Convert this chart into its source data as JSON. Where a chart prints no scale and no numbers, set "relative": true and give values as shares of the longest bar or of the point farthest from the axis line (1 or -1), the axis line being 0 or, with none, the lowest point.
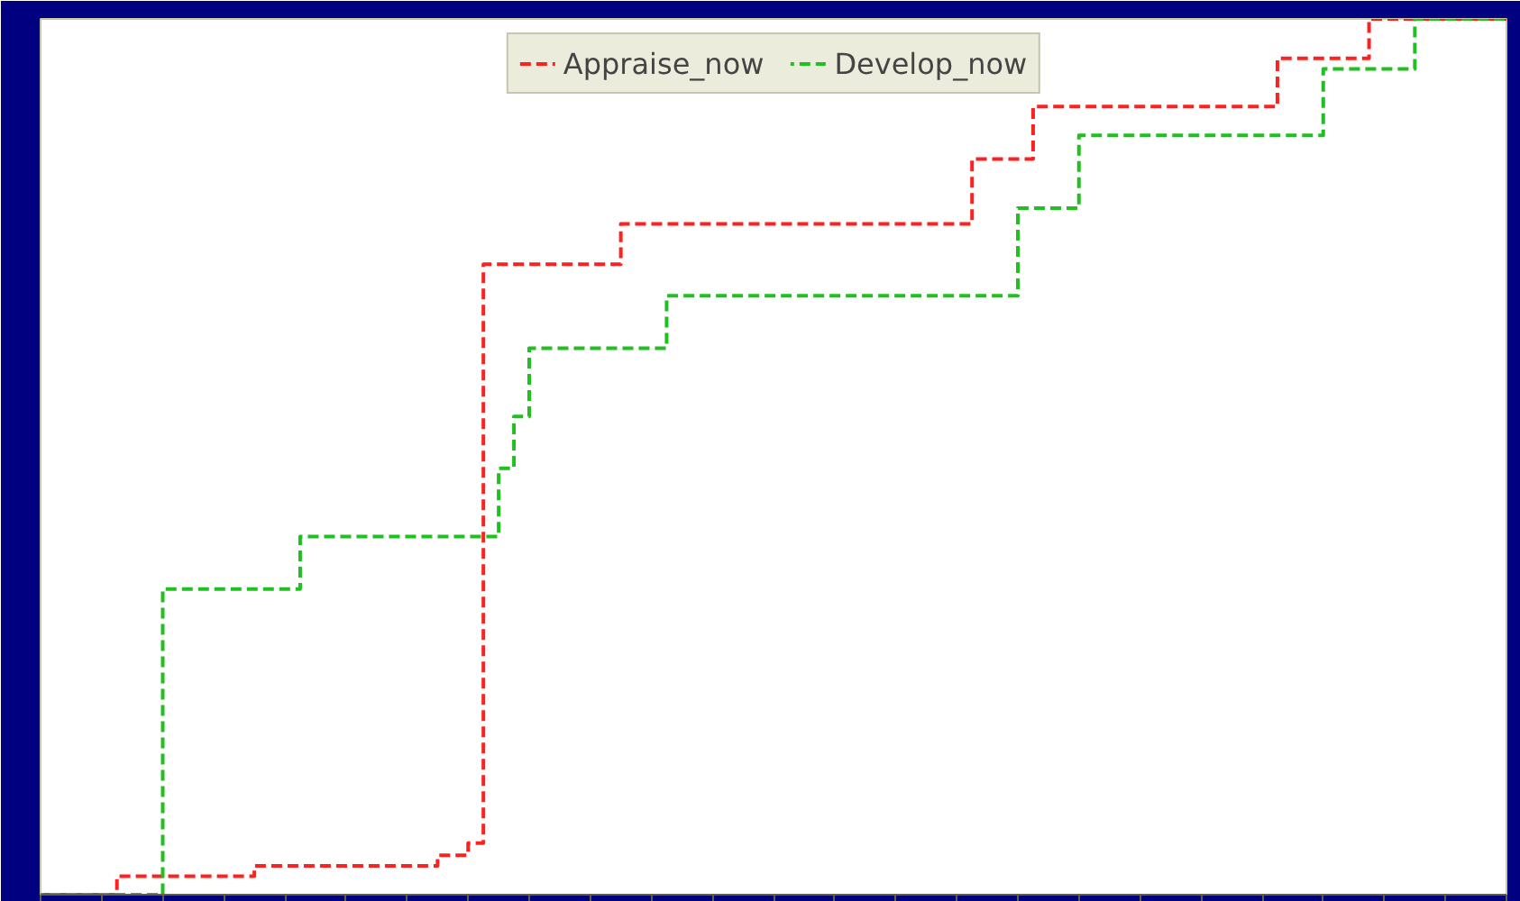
{
  "chart_data": {
    "type": "step",
    "relative": true,
    "categories": [
      null,
      null,
      null,
      null,
      null,
      null,
      null,
      null,
      null,
      null,
      null,
      null,
      null,
      null,
      null,
      null,
      null,
      null,
      null,
      null,
      null,
      null,
      null,
      null,
      null,
      null,
      null,
      null,
      null,
      null,
      null,
      null,
      null,
      null,
      null,
      null,
      null,
      null,
      null,
      null,
      null,
      null,
      null,
      null,
      null,
      null,
      null,
      null,
      null,
      null,
      null,
      null,
      null,
      null,
      null,
      null,
      null,
      null,
      null,
      null,
      null,
      null,
      null,
      null,
      null,
      null,
      null,
      null,
      null,
      null,
      null,
      null,
      null,
      null,
      null,
      null,
      null,
      null,
      null,
      null,
      null,
      null,
      null,
      null,
      null,
      null,
      null,
      null,
      null,
      null,
      null,
      null,
      null,
      null,
      null,
      null,
      null
    ],
    "series": [
      {
        "name": "Appraise_now",
        "color": "#ff2020",
        "values": [
          0,
          0,
          0,
          0,
          0,
          0.021,
          0.021,
          0.021,
          0.021,
          0.021,
          0.021,
          0.021,
          0.021,
          0.021,
          0.033,
          0.033,
          0.033,
          0.033,
          0.033,
          0.033,
          0.033,
          0.033,
          0.033,
          0.033,
          0.033,
          0.033,
          0.045,
          0.045,
          0.059,
          0.72,
          0.72,
          0.72,
          0.72,
          0.72,
          0.72,
          0.72,
          0.72,
          0.72,
          0.766,
          0.766,
          0.766,
          0.766,
          0.766,
          0.766,
          0.766,
          0.766,
          0.766,
          0.766,
          0.766,
          0.766,
          0.766,
          0.766,
          0.766,
          0.766,
          0.766,
          0.766,
          0.766,
          0.766,
          0.766,
          0.766,
          0.766,
          0.84,
          0.84,
          0.84,
          0.84,
          0.9,
          0.9,
          0.9,
          0.9,
          0.9,
          0.9,
          0.9,
          0.9,
          0.9,
          0.9,
          0.9,
          0.9,
          0.9,
          0.9,
          0.9,
          0.9,
          0.955,
          0.955,
          0.955,
          0.955,
          0.955,
          0.955,
          1,
          1,
          1,
          1,
          1,
          1,
          1,
          1,
          1,
          1
        ]
      },
      {
        "name": "Develop_now",
        "color": "#20c020",
        "values": [
          0,
          0,
          0,
          0,
          0,
          0,
          0,
          0,
          0.349,
          0.349,
          0.349,
          0.349,
          0.349,
          0.349,
          0.349,
          0.349,
          0.349,
          0.409,
          0.409,
          0.409,
          0.409,
          0.409,
          0.409,
          0.409,
          0.409,
          0.409,
          0.409,
          0.409,
          0.409,
          0.409,
          0.487,
          0.546,
          0.624,
          0.624,
          0.624,
          0.624,
          0.624,
          0.624,
          0.624,
          0.624,
          0.624,
          0.684,
          0.684,
          0.684,
          0.684,
          0.684,
          0.684,
          0.684,
          0.684,
          0.684,
          0.684,
          0.684,
          0.684,
          0.684,
          0.684,
          0.684,
          0.684,
          0.684,
          0.684,
          0.684,
          0.684,
          0.684,
          0.684,
          0.684,
          0.784,
          0.784,
          0.784,
          0.784,
          0.867,
          0.867,
          0.867,
          0.867,
          0.867,
          0.867,
          0.867,
          0.867,
          0.867,
          0.867,
          0.867,
          0.867,
          0.867,
          0.867,
          0.867,
          0.867,
          0.943,
          0.943,
          0.943,
          0.943,
          0.943,
          0.943,
          1,
          1,
          1,
          1,
          1,
          1,
          1
        ]
      }
    ],
    "line_style": "dashed",
    "legend": "top",
    "grid": false,
    "tick_labels": false
  }
}
